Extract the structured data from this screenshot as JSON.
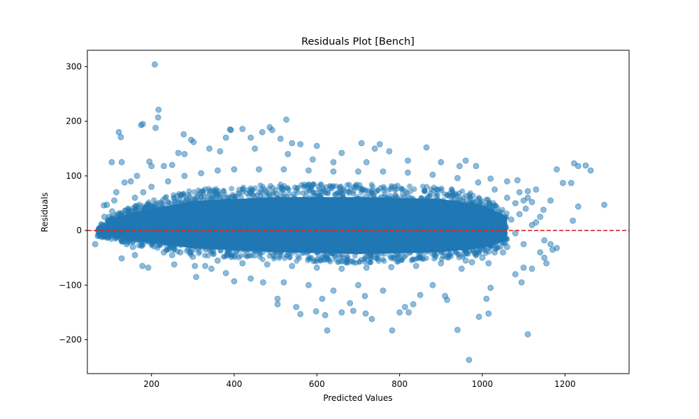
{
  "chart_data": {
    "type": "scatter",
    "title": "Residuals Plot [Bench]",
    "xlabel": "Predicted Values",
    "ylabel": "Residuals",
    "xlim": [
      45,
      1355
    ],
    "ylim": [
      -262,
      330
    ],
    "xticks": [
      200,
      400,
      600,
      800,
      1000,
      1200
    ],
    "yticks": [
      -200,
      -100,
      0,
      100,
      200,
      300
    ],
    "point_color": "#1f77b4",
    "point_alpha": 0.5,
    "reference_line": {
      "y": 0,
      "color": "#d62728",
      "style": "dashed"
    },
    "dense_band": {
      "description_points": [
        {
          "x": 70,
          "lo": -10,
          "hi": 10
        },
        {
          "x": 150,
          "lo": -25,
          "hi": 45
        },
        {
          "x": 300,
          "lo": -45,
          "hi": 75
        },
        {
          "x": 500,
          "lo": -55,
          "hi": 85
        },
        {
          "x": 700,
          "lo": -60,
          "hi": 85
        },
        {
          "x": 900,
          "lo": -55,
          "hi": 80
        },
        {
          "x": 1000,
          "lo": -45,
          "hi": 65
        },
        {
          "x": 1060,
          "lo": -25,
          "hi": 35
        }
      ]
    },
    "series": [
      {
        "points": [
          [
            208,
            304
          ],
          [
            217,
            221
          ],
          [
            216,
            207
          ],
          [
            210,
            188
          ],
          [
            175,
            193
          ],
          [
            179,
            195
          ],
          [
            121,
            180
          ],
          [
            126,
            171
          ],
          [
            278,
            176
          ],
          [
            296,
            166
          ],
          [
            302,
            162
          ],
          [
            392,
            184
          ],
          [
            390,
            185
          ],
          [
            420,
            186
          ],
          [
            468,
            180
          ],
          [
            486,
            189
          ],
          [
            492,
            184
          ],
          [
            526,
            203
          ],
          [
            512,
            168
          ],
          [
            540,
            160
          ],
          [
            560,
            158
          ],
          [
            600,
            155
          ],
          [
            708,
            160
          ],
          [
            740,
            150
          ],
          [
            752,
            158
          ],
          [
            775,
            145
          ],
          [
            865,
            152
          ],
          [
            265,
            142
          ],
          [
            280,
            140
          ],
          [
            340,
            150
          ],
          [
            366,
            145
          ],
          [
            450,
            150
          ],
          [
            104,
            125
          ],
          [
            128,
            125
          ],
          [
            195,
            126
          ],
          [
            660,
            142
          ],
          [
            1222,
            123
          ],
          [
            1232,
            118
          ],
          [
            1250,
            119
          ],
          [
            1262,
            110
          ],
          [
            1180,
            112
          ],
          [
            1195,
            87
          ],
          [
            1215,
            87
          ],
          [
            1232,
            44
          ],
          [
            1295,
            47
          ],
          [
            1219,
            18
          ],
          [
            1165,
            55
          ],
          [
            1148,
            38
          ],
          [
            85,
            46
          ],
          [
            92,
            47
          ],
          [
            98,
            25
          ],
          [
            86,
            25
          ],
          [
            64,
            -25
          ],
          [
            70,
            -10
          ],
          [
            75,
            -5
          ],
          [
            80,
            -12
          ],
          [
            90,
            -8
          ],
          [
            128,
            -51
          ],
          [
            160,
            -45
          ],
          [
            178,
            -65
          ],
          [
            192,
            -68
          ],
          [
            255,
            -62
          ],
          [
            305,
            -65
          ],
          [
            308,
            -85
          ],
          [
            345,
            -70
          ],
          [
            400,
            -93
          ],
          [
            470,
            -95
          ],
          [
            505,
            -125
          ],
          [
            505,
            -135
          ],
          [
            550,
            -140
          ],
          [
            560,
            -153
          ],
          [
            598,
            -148
          ],
          [
            613,
            -125
          ],
          [
            620,
            -155
          ],
          [
            625,
            -183
          ],
          [
            660,
            -150
          ],
          [
            680,
            -133
          ],
          [
            688,
            -147
          ],
          [
            716,
            -120
          ],
          [
            718,
            -152
          ],
          [
            733,
            -162
          ],
          [
            782,
            -183
          ],
          [
            800,
            -150
          ],
          [
            813,
            -140
          ],
          [
            822,
            -150
          ],
          [
            833,
            -135
          ],
          [
            850,
            -118
          ],
          [
            910,
            -120
          ],
          [
            915,
            -127
          ],
          [
            940,
            -182
          ],
          [
            968,
            -237
          ],
          [
            992,
            -158
          ],
          [
            1015,
            -152
          ],
          [
            1010,
            -125
          ],
          [
            1020,
            -105
          ],
          [
            1080,
            -80
          ],
          [
            1095,
            -95
          ],
          [
            1100,
            -68
          ],
          [
            1110,
            -190
          ],
          [
            1120,
            -70
          ],
          [
            1150,
            -50
          ],
          [
            1155,
            -60
          ],
          [
            1170,
            -35
          ],
          [
            1180,
            -32
          ],
          [
            1140,
            -40
          ],
          [
            1150,
            -18
          ],
          [
            1165,
            -25
          ],
          [
            1100,
            -25
          ],
          [
            1050,
            -40
          ],
          [
            1015,
            -60
          ],
          [
            975,
            -58
          ],
          [
            950,
            -70
          ],
          [
            880,
            -100
          ],
          [
            760,
            -110
          ],
          [
            700,
            -100
          ],
          [
            640,
            -110
          ],
          [
            580,
            -100
          ],
          [
            520,
            -95
          ],
          [
            440,
            -88
          ],
          [
            380,
            -78
          ],
          [
            330,
            -65
          ],
          [
            380,
            170
          ],
          [
            440,
            170
          ],
          [
            530,
            140
          ],
          [
            590,
            130
          ],
          [
            640,
            125
          ],
          [
            720,
            125
          ],
          [
            820,
            128
          ],
          [
            900,
            125
          ],
          [
            945,
            118
          ],
          [
            960,
            128
          ],
          [
            985,
            118
          ],
          [
            1020,
            95
          ],
          [
            1060,
            90
          ],
          [
            1085,
            92
          ],
          [
            1110,
            72
          ],
          [
            1120,
            52
          ],
          [
            1130,
            75
          ],
          [
            1105,
            40
          ],
          [
            1130,
            15
          ],
          [
            1140,
            25
          ],
          [
            1120,
            10
          ],
          [
            1080,
            -5
          ],
          [
            1070,
            20
          ],
          [
            1090,
            30
          ],
          [
            150,
            90
          ],
          [
            165,
            100
          ],
          [
            200,
            118
          ],
          [
            230,
            118
          ],
          [
            250,
            120
          ],
          [
            110,
            55
          ],
          [
            115,
            70
          ],
          [
            135,
            88
          ],
          [
            100,
            18
          ],
          [
            105,
            35
          ],
          [
            112,
            2
          ],
          [
            120,
            -10
          ],
          [
            140,
            -25
          ],
          [
            155,
            -30
          ],
          [
            230,
            -40
          ],
          [
            250,
            -45
          ],
          [
            270,
            -40
          ],
          [
            300,
            -48
          ],
          [
            360,
            -55
          ],
          [
            420,
            -60
          ],
          [
            480,
            -62
          ],
          [
            540,
            -65
          ],
          [
            600,
            -68
          ],
          [
            660,
            -70
          ],
          [
            720,
            -68
          ],
          [
            780,
            -67
          ],
          [
            840,
            -65
          ],
          [
            900,
            -60
          ],
          [
            960,
            -55
          ],
          [
            1000,
            -50
          ],
          [
            1030,
            -40
          ],
          [
            1060,
            -30
          ],
          [
            200,
            80
          ],
          [
            240,
            90
          ],
          [
            280,
            100
          ],
          [
            320,
            105
          ],
          [
            360,
            110
          ],
          [
            400,
            112
          ],
          [
            460,
            112
          ],
          [
            520,
            112
          ],
          [
            580,
            110
          ],
          [
            640,
            108
          ],
          [
            700,
            108
          ],
          [
            760,
            108
          ],
          [
            820,
            106
          ],
          [
            880,
            102
          ],
          [
            940,
            96
          ],
          [
            990,
            88
          ],
          [
            1030,
            75
          ],
          [
            1060,
            60
          ],
          [
            1080,
            50
          ],
          [
            1100,
            55
          ],
          [
            1110,
            60
          ],
          [
            1090,
            70
          ],
          [
            160,
            60
          ],
          [
            180,
            70
          ]
        ]
      }
    ]
  }
}
